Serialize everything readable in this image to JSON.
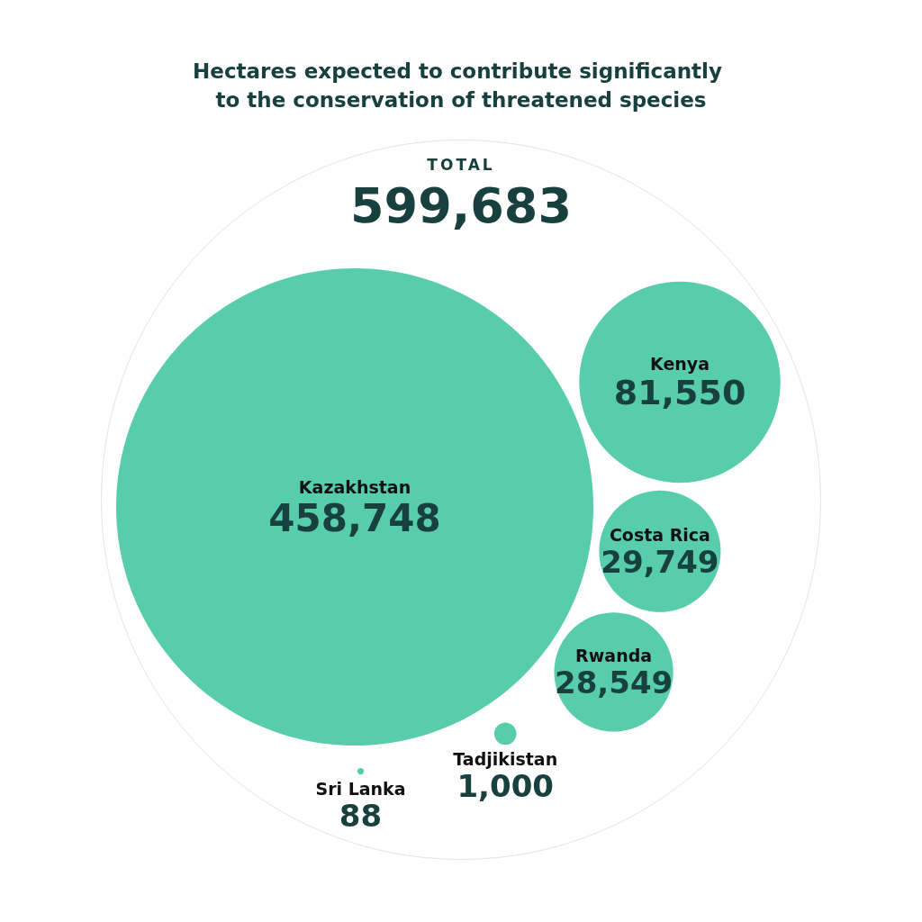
{
  "chart_data": {
    "type": "other",
    "title": "Hectares expected to contribute significantly to the conservation of threatened species",
    "categories": [
      "Kazakhstan",
      "Kenya",
      "Costa Rica",
      "Rwanda",
      "Tadjikistan",
      "Sri Lanka"
    ],
    "values": [
      458748,
      81550,
      29749,
      28549,
      1000,
      88
    ],
    "color": "#57cdab",
    "value_labels": [
      "458,748",
      "81,550",
      "29,749",
      "28,549",
      "1,000",
      "88"
    ],
    "annotations": [
      "TOTAL",
      "599,683"
    ]
  }
}
